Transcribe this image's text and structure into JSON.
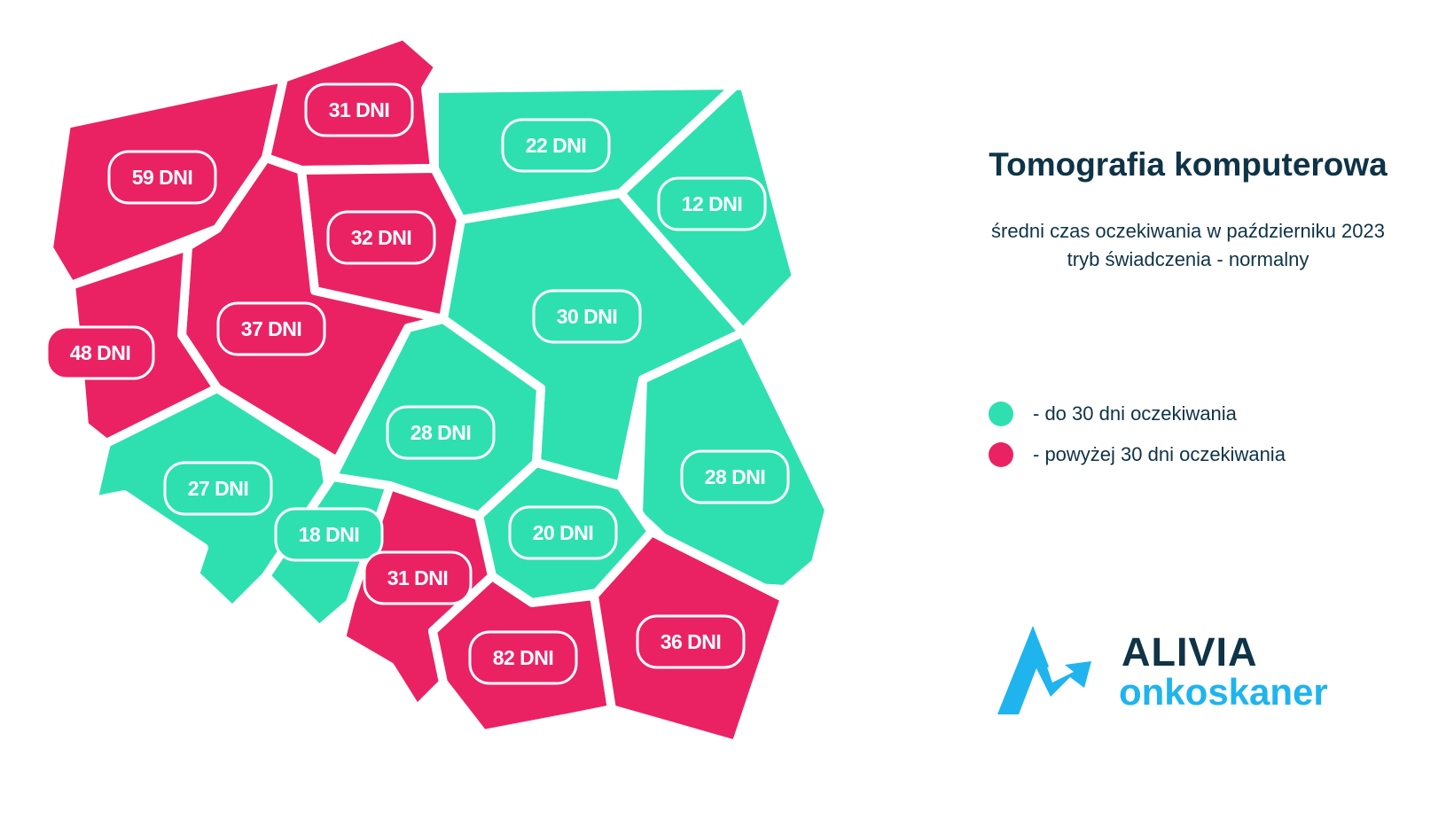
{
  "title": "Tomografia komputerowa",
  "subtitle": {
    "line1": "średni czas oczekiwania w październiku 2023",
    "line2": "tryb świadczenia - normalny"
  },
  "legend": [
    {
      "label": "- do 30 dni oczekiwania",
      "color": "#2ee0b0"
    },
    {
      "label": "- powyżej 30 dni oczekiwania",
      "color": "#ea2264"
    }
  ],
  "colors": {
    "short_wait": "#2ee0b0",
    "long_wait": "#ea2264",
    "text_dark": "#0f3347",
    "brand_blue": "#1fb4ee"
  },
  "regions": [
    {
      "label": "59 DNI",
      "days": 59
    },
    {
      "label": "31 DNI",
      "days": 31
    },
    {
      "label": "22 DNI",
      "days": 22
    },
    {
      "label": "12 DNI",
      "days": 12
    },
    {
      "label": "32 DNI",
      "days": 32
    },
    {
      "label": "37 DNI",
      "days": 37
    },
    {
      "label": "48 DNI",
      "days": 48
    },
    {
      "label": "30 DNI",
      "days": 30
    },
    {
      "label": "28 DNI",
      "days": 28
    },
    {
      "label": "28 DNI",
      "days": 28
    },
    {
      "label": "27 DNI",
      "days": 27
    },
    {
      "label": "18 DNI",
      "days": 18
    },
    {
      "label": "20 DNI",
      "days": 20
    },
    {
      "label": "31 DNI",
      "days": 31
    },
    {
      "label": "82 DNI",
      "days": 82
    },
    {
      "label": "36 DNI",
      "days": 36
    }
  ],
  "logo": {
    "line1": "ALIVIA",
    "line2": "onkoskaner"
  }
}
